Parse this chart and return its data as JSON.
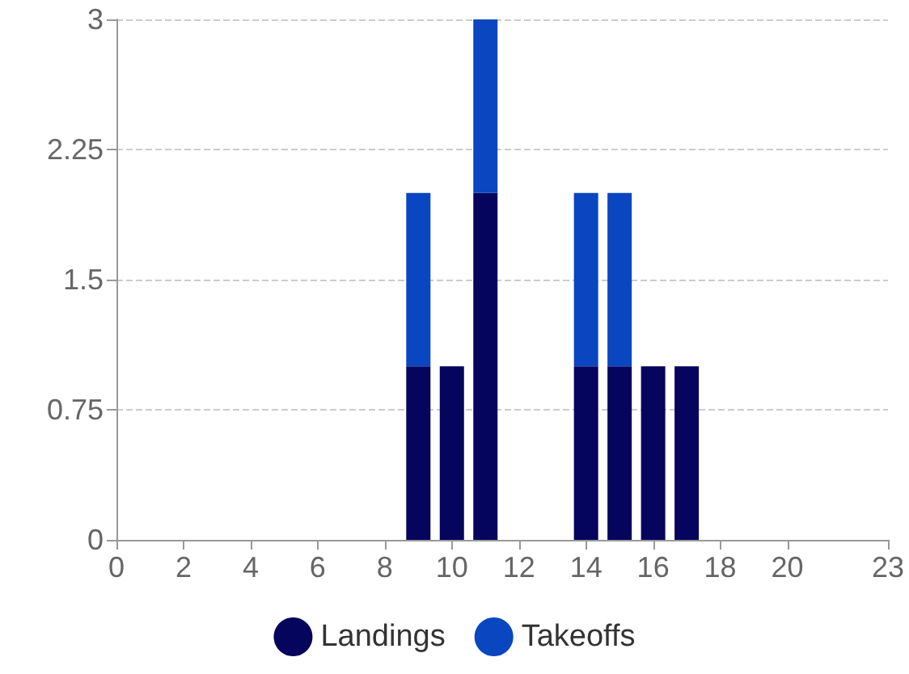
{
  "chart_data": {
    "type": "bar",
    "stacked": true,
    "x": [
      9,
      10,
      11,
      14,
      15,
      16,
      17
    ],
    "series": [
      {
        "name": "Landings",
        "color": "#05055e",
        "values": [
          1,
          1,
          2,
          1,
          1,
          1,
          1
        ]
      },
      {
        "name": "Takeoffs",
        "color": "#0a46c0",
        "values": [
          1,
          null,
          1,
          1,
          1,
          null,
          null
        ]
      }
    ],
    "xlim": [
      0,
      23
    ],
    "xticks": [
      0,
      2,
      4,
      6,
      8,
      10,
      12,
      14,
      16,
      18,
      20,
      23
    ],
    "ylim": [
      0,
      3
    ],
    "yticks": [
      0,
      0.75,
      1.5,
      2.25,
      3
    ],
    "grid": "y",
    "legend": "bottom"
  }
}
